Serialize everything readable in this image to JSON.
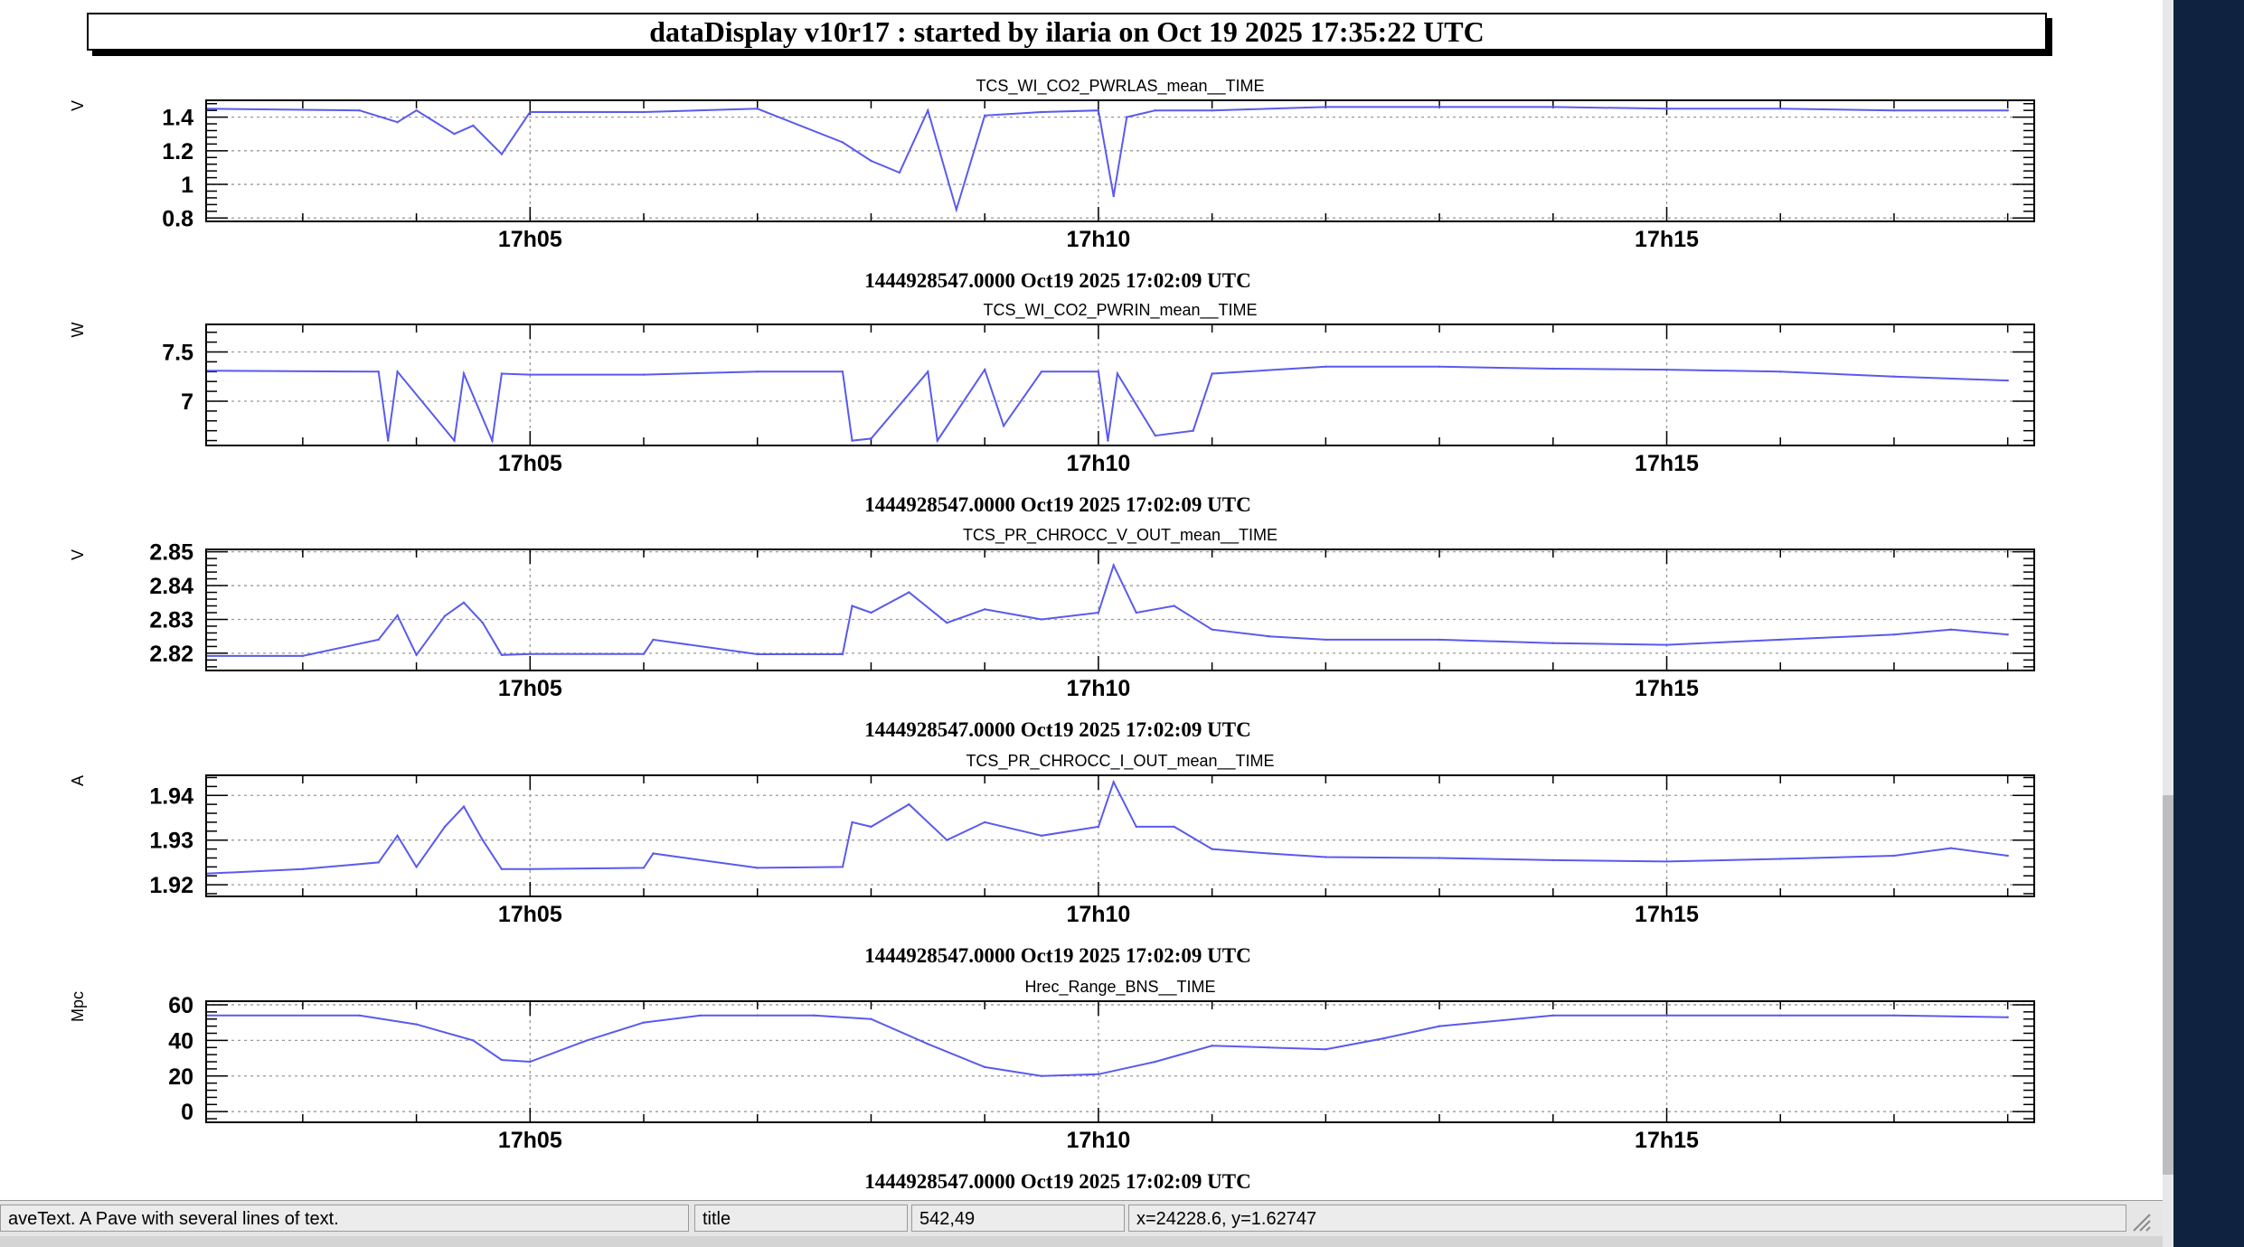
{
  "window": {
    "title": "dataDisplay v10r17 : started by ilaria on Oct 19 2025 17:35:22 UTC"
  },
  "status_bar": {
    "object_info": "aveText. A Pave with several lines of text.",
    "object_name": "title",
    "pixel_coords": "542,49",
    "data_coords": "x=24228.6, y=1.62747"
  },
  "colors": {
    "line": "#5a5aee",
    "grid": "#9a9a9a",
    "frame": "#000000"
  },
  "chart_data": [
    {
      "type": "line",
      "title": "TCS_WI_CO2_PWRLAS_mean__TIME",
      "ylabel": "V",
      "xlabel": "1444928547.0000 Oct19 2025 17:02:09 UTC",
      "x_ticks": [
        "17h05",
        "17h10",
        "17h15"
      ],
      "y_ticks": [
        "0.8",
        "1",
        "1.2",
        "1.4"
      ],
      "ylim": [
        0.78,
        1.5
      ],
      "grid": true,
      "x": [
        "17:02:09",
        "17:03:30",
        "17:03:50",
        "17:04:00",
        "17:04:20",
        "17:04:30",
        "17:04:45",
        "17:05:00",
        "17:06:00",
        "17:07:00",
        "17:07:45",
        "17:08:00",
        "17:08:15",
        "17:08:30",
        "17:08:45",
        "17:09:00",
        "17:09:30",
        "17:10:00",
        "17:10:08",
        "17:10:15",
        "17:10:30",
        "17:11:00",
        "17:12:00",
        "17:13:00",
        "17:14:00",
        "17:15:00",
        "17:16:00",
        "17:17:00",
        "17:18:00"
      ],
      "series": [
        {
          "values": [
            1.45,
            1.44,
            1.37,
            1.44,
            1.3,
            1.35,
            1.18,
            1.43,
            1.43,
            1.45,
            1.25,
            1.14,
            1.07,
            1.44,
            0.85,
            1.41,
            1.43,
            1.44,
            0.93,
            1.4,
            1.44,
            1.44,
            1.46,
            1.46,
            1.46,
            1.45,
            1.45,
            1.44,
            1.44
          ]
        }
      ]
    },
    {
      "type": "line",
      "title": "TCS_WI_CO2_PWRIN_mean__TIME",
      "ylabel": "W",
      "xlabel": "1444928547.0000 Oct19 2025 17:02:09 UTC",
      "x_ticks": [
        "17h05",
        "17h10",
        "17h15"
      ],
      "y_ticks": [
        "7",
        "7.5"
      ],
      "ylim": [
        6.55,
        7.78
      ],
      "grid": true,
      "x": [
        "17:02:09",
        "17:03:40",
        "17:03:45",
        "17:03:50",
        "17:04:20",
        "17:04:25",
        "17:04:40",
        "17:04:45",
        "17:05:00",
        "17:06:00",
        "17:07:00",
        "17:07:45",
        "17:07:50",
        "17:08:00",
        "17:08:30",
        "17:08:35",
        "17:09:00",
        "17:09:10",
        "17:09:30",
        "17:10:00",
        "17:10:05",
        "17:10:10",
        "17:10:30",
        "17:10:50",
        "17:11:00",
        "17:12:00",
        "17:13:00",
        "17:14:00",
        "17:15:00",
        "17:16:00",
        "17:17:00",
        "17:18:00"
      ],
      "series": [
        {
          "values": [
            7.31,
            7.3,
            6.6,
            7.3,
            6.6,
            7.28,
            6.6,
            7.28,
            7.27,
            7.27,
            7.3,
            7.3,
            6.6,
            6.62,
            7.3,
            6.6,
            7.32,
            6.75,
            7.3,
            7.3,
            6.6,
            7.28,
            6.65,
            6.7,
            7.28,
            7.35,
            7.35,
            7.33,
            7.32,
            7.3,
            7.25,
            7.21
          ]
        }
      ]
    },
    {
      "type": "line",
      "title": "TCS_PR_CHROCC_V_OUT_mean__TIME",
      "ylabel": "V",
      "xlabel": "1444928547.0000 Oct19 2025 17:02:09 UTC",
      "x_ticks": [
        "17h05",
        "17h10",
        "17h15"
      ],
      "y_ticks": [
        "2.82",
        "2.83",
        "2.84",
        "2.85"
      ],
      "ylim": [
        2.8149,
        2.8507
      ],
      "grid": true,
      "x": [
        "17:02:09",
        "17:03:00",
        "17:03:40",
        "17:03:50",
        "17:04:00",
        "17:04:15",
        "17:04:25",
        "17:04:35",
        "17:04:45",
        "17:05:00",
        "17:06:00",
        "17:06:05",
        "17:07:00",
        "17:07:45",
        "17:07:50",
        "17:08:00",
        "17:08:20",
        "17:08:40",
        "17:09:00",
        "17:09:30",
        "17:10:00",
        "17:10:08",
        "17:10:20",
        "17:10:40",
        "17:11:00",
        "17:11:30",
        "17:12:00",
        "17:13:00",
        "17:14:00",
        "17:15:00",
        "17:16:00",
        "17:17:00",
        "17:17:30",
        "17:18:00"
      ],
      "series": [
        {
          "values": [
            2.8192,
            2.8192,
            2.824,
            2.8312,
            2.8195,
            2.831,
            2.835,
            2.829,
            2.8195,
            2.8198,
            2.8198,
            2.824,
            2.8197,
            2.8197,
            2.834,
            2.832,
            2.838,
            2.829,
            2.833,
            2.83,
            2.832,
            2.846,
            2.832,
            2.834,
            2.827,
            2.825,
            2.824,
            2.824,
            2.823,
            2.8225,
            2.824,
            2.8255,
            2.827,
            2.8255
          ]
        }
      ]
    },
    {
      "type": "line",
      "title": "TCS_PR_CHROCC_I_OUT_mean__TIME",
      "ylabel": "A",
      "xlabel": "1444928547.0000 Oct19 2025 17:02:09 UTC",
      "x_ticks": [
        "17h05",
        "17h10",
        "17h15"
      ],
      "y_ticks": [
        "1.92",
        "1.93",
        "1.94"
      ],
      "ylim": [
        1.9174,
        1.9445
      ],
      "grid": true,
      "x": [
        "17:02:09",
        "17:03:00",
        "17:03:40",
        "17:03:50",
        "17:04:00",
        "17:04:15",
        "17:04:25",
        "17:04:35",
        "17:04:45",
        "17:05:00",
        "17:06:00",
        "17:06:05",
        "17:07:00",
        "17:07:45",
        "17:07:50",
        "17:08:00",
        "17:08:20",
        "17:08:40",
        "17:09:00",
        "17:09:30",
        "17:10:00",
        "17:10:08",
        "17:10:20",
        "17:10:40",
        "17:11:00",
        "17:11:30",
        "17:12:00",
        "17:13:00",
        "17:14:00",
        "17:15:00",
        "17:16:00",
        "17:17:00",
        "17:17:30",
        "17:18:00"
      ],
      "series": [
        {
          "values": [
            1.9225,
            1.9235,
            1.925,
            1.931,
            1.924,
            1.933,
            1.9375,
            1.93,
            1.9235,
            1.9235,
            1.9238,
            1.927,
            1.9238,
            1.924,
            1.934,
            1.933,
            1.938,
            1.93,
            1.934,
            1.931,
            1.933,
            1.943,
            1.933,
            1.933,
            1.928,
            1.927,
            1.9262,
            1.926,
            1.9255,
            1.9252,
            1.9258,
            1.9265,
            1.9282,
            1.9265
          ]
        }
      ]
    },
    {
      "type": "line",
      "title": "Hrec_Range_BNS__TIME",
      "ylabel": "Mpc",
      "xlabel": "1444928547.0000 Oct19 2025 17:02:09 UTC",
      "x_ticks": [
        "17h05",
        "17h10",
        "17h15"
      ],
      "y_ticks": [
        "0",
        "20",
        "40",
        "60"
      ],
      "ylim": [
        -6,
        62
      ],
      "grid": true,
      "x": [
        "17:02:09",
        "17:03:30",
        "17:04:00",
        "17:04:30",
        "17:04:45",
        "17:05:00",
        "17:05:30",
        "17:06:00",
        "17:06:30",
        "17:07:00",
        "17:07:30",
        "17:08:00",
        "17:08:30",
        "17:09:00",
        "17:09:30",
        "17:10:00",
        "17:10:30",
        "17:11:00",
        "17:11:30",
        "17:12:00",
        "17:12:30",
        "17:13:00",
        "17:14:00",
        "17:15:00",
        "17:16:00",
        "17:17:00",
        "17:18:00"
      ],
      "series": [
        {
          "values": [
            54,
            54,
            49,
            40,
            29,
            28,
            40,
            50,
            54,
            54,
            54,
            52,
            38,
            25,
            20,
            21,
            28,
            37,
            36,
            35,
            41,
            48,
            54,
            54,
            54,
            54,
            53
          ]
        }
      ]
    }
  ]
}
